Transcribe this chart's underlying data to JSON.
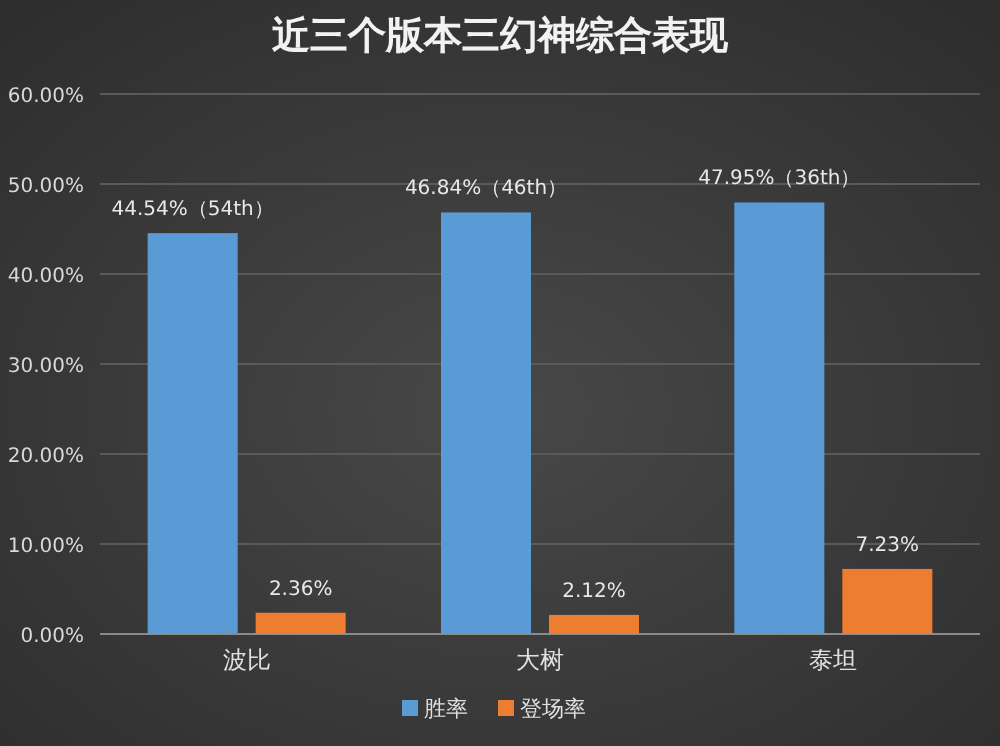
{
  "chart_data": {
    "type": "bar",
    "title": "近三个版本三幻神综合表现",
    "categories": [
      "波比",
      "大树",
      "泰坦"
    ],
    "series": [
      {
        "name": "胜率",
        "color": "#5b9bd5",
        "values": [
          44.54,
          46.84,
          47.95
        ],
        "value_labels": [
          "44.54%（54th）",
          "46.84%（46th）",
          "47.95%（36th）"
        ]
      },
      {
        "name": "登场率",
        "color": "#ed7d31",
        "values": [
          2.36,
          2.12,
          7.23
        ],
        "value_labels": [
          "2.36%",
          "2.12%",
          "7.23%"
        ]
      }
    ],
    "ylim": [
      0,
      60
    ],
    "yticks": [
      {
        "value": 0,
        "label": "0.00%"
      },
      {
        "value": 10,
        "label": "10.00%"
      },
      {
        "value": 20,
        "label": "20.00%"
      },
      {
        "value": 30,
        "label": "30.00%"
      },
      {
        "value": 40,
        "label": "40.00%"
      },
      {
        "value": 50,
        "label": "50.00%"
      },
      {
        "value": 60,
        "label": "60.00%"
      }
    ],
    "grid": "y",
    "legend": "bottom"
  }
}
